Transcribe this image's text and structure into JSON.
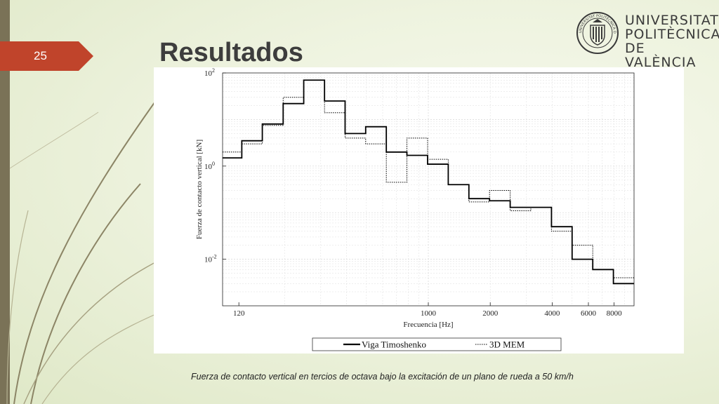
{
  "slide": {
    "number": "25",
    "title": "Resultados",
    "caption": "Fuerza de contacto vertical en tercios de octava bajo la excitación de un plano de rueda a 50 km/h"
  },
  "logo": {
    "lines": [
      "UNIVERSITAT",
      "POLITÈCNICA",
      "DE VALÈNCIA"
    ],
    "seal_text": "UNIVERSITAT POLITÈCNICA DE VALÈNCIA"
  },
  "colors": {
    "accent": "#c0442b",
    "sidebar": "#7a7257"
  },
  "chart_data": {
    "type": "line",
    "step": true,
    "x_scale": "log",
    "y_scale": "log",
    "xlim": [
      100,
      10000
    ],
    "ylim": [
      0.001,
      100
    ],
    "xlabel": "Frecuencia [Hz]",
    "ylabel": "Fuerza de contacto vertical [kN]",
    "x_ticks": [
      {
        "value": 120,
        "label": "120"
      },
      {
        "value": 1000,
        "label": "1000"
      },
      {
        "value": 2000,
        "label": "2000"
      },
      {
        "value": 4000,
        "label": "4000"
      },
      {
        "value": 6000,
        "label": "6000"
      },
      {
        "value": 8000,
        "label": "8000"
      }
    ],
    "y_ticks": [
      {
        "value": 100,
        "label_base": "10",
        "label_exp": "2"
      },
      {
        "value": 1,
        "label_base": "10",
        "label_exp": "0"
      },
      {
        "value": 0.01,
        "label_base": "10",
        "label_exp": "-2"
      }
    ],
    "legend_position": "bottom",
    "band_edges": [
      100,
      124,
      156,
      197,
      248,
      313,
      394,
      496,
      625,
      787,
      992,
      1250,
      1575,
      1984,
      2500,
      3150,
      3969,
      5000,
      6300,
      7937,
      10000
    ],
    "series": [
      {
        "name": "Viga Timoshenko",
        "style": "solid",
        "values": [
          1.5,
          3.5,
          8.0,
          22,
          70,
          25,
          5.0,
          7.0,
          2.0,
          1.7,
          1.1,
          0.4,
          0.2,
          0.18,
          0.13,
          0.13,
          0.05,
          0.01,
          0.006,
          0.003
        ]
      },
      {
        "name": "3D MEM",
        "style": "dotted",
        "values": [
          2.0,
          3.0,
          7.5,
          30,
          70,
          14,
          4.0,
          3.0,
          0.45,
          4.0,
          1.4,
          0.4,
          0.17,
          0.3,
          0.11,
          0.13,
          0.04,
          0.02,
          0.006,
          0.004
        ]
      }
    ]
  }
}
